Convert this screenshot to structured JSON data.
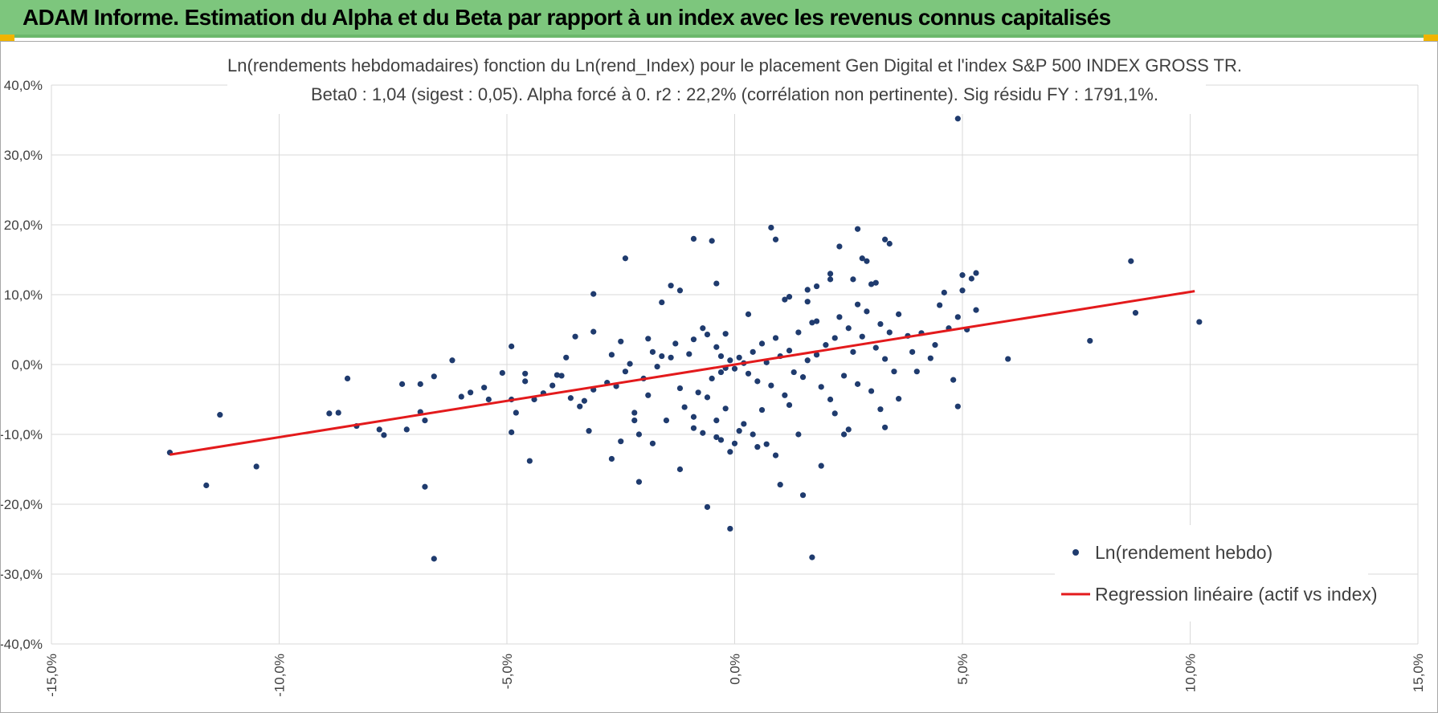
{
  "header": {
    "title": "ADAM Informe. Estimation du Alpha et du Beta par rapport à un index avec les revenus connus capitalisés"
  },
  "colors": {
    "header_bg": "#7dc67d",
    "points": "#1f3b6e",
    "regression": "#e31a1c",
    "grid": "#d9d9d9"
  },
  "chart_data": {
    "type": "scatter",
    "title": "Ln(rendements hebdomadaires) fonction du Ln(rend_Index) pour le placement Gen Digital et l'index S&P 500 INDEX GROSS TR.",
    "subtitle": "Beta0 : 1,04 (sigest : 0,05).  Alpha forcé à 0. r2 : 22,2% (corrélation non pertinente). Sig résidu FY : 1791,1%.",
    "xlabel": "",
    "ylabel": "",
    "xlim": [
      -0.15,
      0.15
    ],
    "ylim": [
      -0.4,
      0.4
    ],
    "x_ticks": [
      "-15,0%",
      "-10,0%",
      "-5,0%",
      "0,0%",
      "5,0%",
      "10,0%",
      "15,0%"
    ],
    "y_ticks": [
      "40,0%",
      "30,0%",
      "20,0%",
      "10,0%",
      "0,0%",
      "-10,0%",
      "-20,0%",
      "-30,0%",
      "-40,0%"
    ],
    "grid": true,
    "legend_position": "bottom-right",
    "series": [
      {
        "name": "Ln(rendement hebdo)",
        "kind": "points",
        "points": [
          [
            -0.124,
            -0.126
          ],
          [
            -0.116,
            -0.173
          ],
          [
            -0.113,
            -0.072
          ],
          [
            -0.105,
            -0.146
          ],
          [
            -0.089,
            -0.07
          ],
          [
            -0.087,
            -0.069
          ],
          [
            -0.085,
            -0.02
          ],
          [
            -0.083,
            -0.088
          ],
          [
            -0.078,
            -0.093
          ],
          [
            -0.077,
            -0.101
          ],
          [
            -0.073,
            -0.028
          ],
          [
            -0.072,
            -0.093
          ],
          [
            -0.069,
            -0.068
          ],
          [
            -0.069,
            -0.028
          ],
          [
            -0.068,
            -0.08
          ],
          [
            -0.068,
            -0.175
          ],
          [
            -0.066,
            -0.017
          ],
          [
            -0.066,
            -0.278
          ],
          [
            -0.062,
            0.006
          ],
          [
            -0.06,
            -0.046
          ],
          [
            -0.058,
            -0.04
          ],
          [
            -0.055,
            -0.033
          ],
          [
            -0.054,
            -0.05
          ],
          [
            -0.051,
            -0.012
          ],
          [
            -0.049,
            -0.05
          ],
          [
            -0.048,
            -0.069
          ],
          [
            -0.046,
            -0.024
          ],
          [
            -0.049,
            0.026
          ],
          [
            -0.049,
            -0.097
          ],
          [
            -0.046,
            -0.013
          ],
          [
            -0.045,
            -0.138
          ],
          [
            -0.044,
            -0.05
          ],
          [
            -0.042,
            -0.041
          ],
          [
            -0.04,
            -0.03
          ],
          [
            -0.038,
            -0.016
          ],
          [
            -0.036,
            -0.048
          ],
          [
            -0.035,
            0.04
          ],
          [
            -0.034,
            -0.06
          ],
          [
            -0.033,
            -0.052
          ],
          [
            -0.032,
            -0.095
          ],
          [
            -0.031,
            -0.036
          ],
          [
            -0.028,
            -0.026
          ],
          [
            -0.026,
            -0.031
          ],
          [
            -0.024,
            -0.01
          ],
          [
            -0.022,
            -0.069
          ],
          [
            -0.021,
            -0.1
          ],
          [
            -0.02,
            -0.02
          ],
          [
            -0.019,
            -0.044
          ],
          [
            -0.018,
            0.018
          ],
          [
            -0.017,
            -0.003
          ],
          [
            -0.016,
            0.012
          ],
          [
            -0.015,
            -0.08
          ],
          [
            -0.014,
            0.01
          ],
          [
            -0.031,
            0.047
          ],
          [
            -0.031,
            0.101
          ],
          [
            -0.027,
            -0.135
          ],
          [
            -0.025,
            -0.11
          ],
          [
            -0.024,
            0.152
          ],
          [
            -0.022,
            -0.08
          ],
          [
            -0.021,
            -0.168
          ],
          [
            -0.019,
            0.037
          ],
          [
            -0.018,
            -0.113
          ],
          [
            -0.016,
            0.089
          ],
          [
            -0.014,
            0.113
          ],
          [
            -0.012,
            0.106
          ],
          [
            -0.012,
            -0.15
          ],
          [
            -0.011,
            -0.061
          ],
          [
            -0.009,
            -0.075
          ],
          [
            -0.009,
            -0.091
          ],
          [
            -0.007,
            -0.098
          ],
          [
            -0.006,
            -0.204
          ],
          [
            -0.004,
            0.116
          ],
          [
            -0.004,
            -0.104
          ],
          [
            -0.002,
            -0.063
          ],
          [
            -0.01,
            0.015
          ],
          [
            -0.009,
            0.036
          ],
          [
            -0.007,
            0.052
          ],
          [
            -0.006,
            -0.047
          ],
          [
            -0.005,
            -0.02
          ],
          [
            -0.004,
            0.025
          ],
          [
            -0.003,
            -0.011
          ],
          [
            -0.003,
            0.012
          ],
          [
            -0.002,
            -0.005
          ],
          [
            -0.001,
            0.006
          ],
          [
            0.0,
            -0.006
          ],
          [
            0.001,
            0.01
          ],
          [
            0.002,
            0.002
          ],
          [
            0.003,
            -0.013
          ],
          [
            0.004,
            0.018
          ],
          [
            0.005,
            -0.024
          ],
          [
            0.006,
            0.03
          ],
          [
            0.007,
            0.003
          ],
          [
            0.008,
            -0.03
          ],
          [
            0.009,
            0.038
          ],
          [
            0.01,
            0.012
          ],
          [
            0.011,
            -0.044
          ],
          [
            0.012,
            0.02
          ],
          [
            0.013,
            -0.011
          ],
          [
            0.014,
            0.046
          ],
          [
            0.015,
            -0.018
          ],
          [
            0.016,
            0.006
          ],
          [
            0.017,
            0.06
          ],
          [
            0.018,
            0.014
          ],
          [
            0.019,
            -0.032
          ],
          [
            0.02,
            0.028
          ],
          [
            0.021,
            -0.05
          ],
          [
            0.022,
            0.038
          ],
          [
            0.023,
            0.068
          ],
          [
            0.024,
            -0.016
          ],
          [
            0.025,
            0.052
          ],
          [
            0.026,
            0.018
          ],
          [
            0.027,
            -0.028
          ],
          [
            0.028,
            0.04
          ],
          [
            0.029,
            0.076
          ],
          [
            0.03,
            -0.038
          ],
          [
            0.031,
            0.024
          ],
          [
            0.032,
            0.058
          ],
          [
            0.033,
            0.008
          ],
          [
            0.034,
            0.046
          ],
          [
            0.035,
            -0.01
          ],
          [
            -0.009,
            0.18
          ],
          [
            -0.006,
            0.043
          ],
          [
            -0.005,
            0.177
          ],
          [
            -0.004,
            -0.08
          ],
          [
            -0.003,
            -0.108
          ],
          [
            -0.001,
            -0.125
          ],
          [
            0.0,
            -0.113
          ],
          [
            0.001,
            -0.095
          ],
          [
            0.002,
            -0.085
          ],
          [
            0.004,
            -0.1
          ],
          [
            0.005,
            -0.118
          ],
          [
            0.007,
            -0.114
          ],
          [
            0.008,
            0.196
          ],
          [
            0.009,
            0.179
          ],
          [
            0.009,
            -0.13
          ],
          [
            0.01,
            -0.172
          ],
          [
            0.011,
            0.093
          ],
          [
            0.012,
            0.097
          ],
          [
            0.014,
            -0.1
          ],
          [
            0.015,
            -0.187
          ],
          [
            0.016,
            0.09
          ],
          [
            0.016,
            0.107
          ],
          [
            0.017,
            -0.276
          ],
          [
            0.018,
            0.112
          ],
          [
            0.019,
            -0.145
          ],
          [
            0.021,
            0.122
          ],
          [
            0.021,
            0.13
          ],
          [
            0.023,
            0.169
          ],
          [
            0.024,
            -0.1
          ],
          [
            0.025,
            -0.093
          ],
          [
            0.026,
            0.122
          ],
          [
            0.027,
            0.194
          ],
          [
            0.028,
            0.152
          ],
          [
            0.029,
            0.148
          ],
          [
            0.03,
            0.115
          ],
          [
            0.031,
            0.117
          ],
          [
            0.033,
            0.179
          ],
          [
            0.034,
            0.173
          ],
          [
            0.033,
            -0.09
          ],
          [
            0.036,
            -0.049
          ],
          [
            0.038,
            0.041
          ],
          [
            0.039,
            0.018
          ],
          [
            -0.001,
            -0.235
          ],
          [
            0.04,
            -0.01
          ],
          [
            0.041,
            0.045
          ],
          [
            0.043,
            0.009
          ],
          [
            0.045,
            0.085
          ],
          [
            0.046,
            0.103
          ],
          [
            0.047,
            0.052
          ],
          [
            0.048,
            -0.022
          ],
          [
            0.049,
            0.068
          ],
          [
            0.05,
            0.128
          ],
          [
            0.05,
            0.106
          ],
          [
            0.049,
            -0.06
          ],
          [
            0.051,
            0.05
          ],
          [
            0.052,
            0.123
          ],
          [
            0.053,
            0.131
          ],
          [
            0.053,
            0.078
          ],
          [
            0.049,
            0.352
          ],
          [
            0.06,
            0.008
          ],
          [
            0.078,
            0.034
          ],
          [
            0.087,
            0.148
          ],
          [
            0.088,
            0.074
          ],
          [
            0.102,
            0.061
          ],
          [
            -0.039,
            -0.015
          ],
          [
            -0.037,
            0.01
          ],
          [
            -0.027,
            0.014
          ],
          [
            -0.025,
            0.033
          ],
          [
            -0.023,
            0.001
          ],
          [
            -0.012,
            -0.034
          ],
          [
            -0.013,
            0.03
          ],
          [
            -0.008,
            -0.04
          ],
          [
            -0.002,
            0.044
          ],
          [
            0.003,
            0.072
          ],
          [
            0.006,
            -0.065
          ],
          [
            0.012,
            -0.058
          ],
          [
            0.018,
            0.062
          ],
          [
            0.022,
            -0.07
          ],
          [
            0.027,
            0.086
          ],
          [
            0.032,
            -0.064
          ],
          [
            0.036,
            0.072
          ],
          [
            0.044,
            0.028
          ]
        ]
      },
      {
        "name": "Regression linéaire (actif vs index)",
        "kind": "line",
        "points": [
          [
            -0.124,
            -0.129
          ],
          [
            0.101,
            0.105
          ]
        ]
      }
    ]
  }
}
